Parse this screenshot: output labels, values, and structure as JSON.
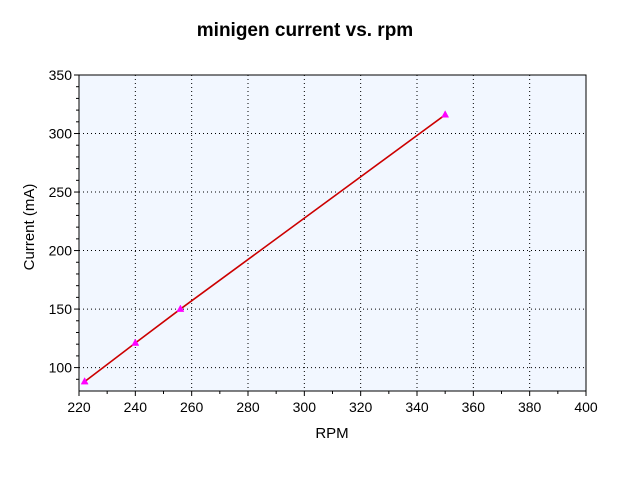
{
  "chart_data": {
    "type": "line",
    "title": "minigen current vs. rpm",
    "xlabel": "RPM",
    "ylabel": "Current (mA)",
    "xlim": [
      220,
      400
    ],
    "ylim": [
      80,
      350
    ],
    "x_ticks": [
      220,
      240,
      260,
      280,
      300,
      320,
      340,
      360,
      380,
      400
    ],
    "y_ticks": [
      100,
      150,
      200,
      250,
      300,
      350
    ],
    "grid": true,
    "plot_background": "#f2f7ff",
    "series": [
      {
        "color": "#cc0000",
        "marker": "triangle",
        "marker_color": "#ff00ff",
        "x": [
          222,
          240,
          256,
          350
        ],
        "y": [
          88,
          121,
          150,
          316
        ]
      }
    ]
  }
}
